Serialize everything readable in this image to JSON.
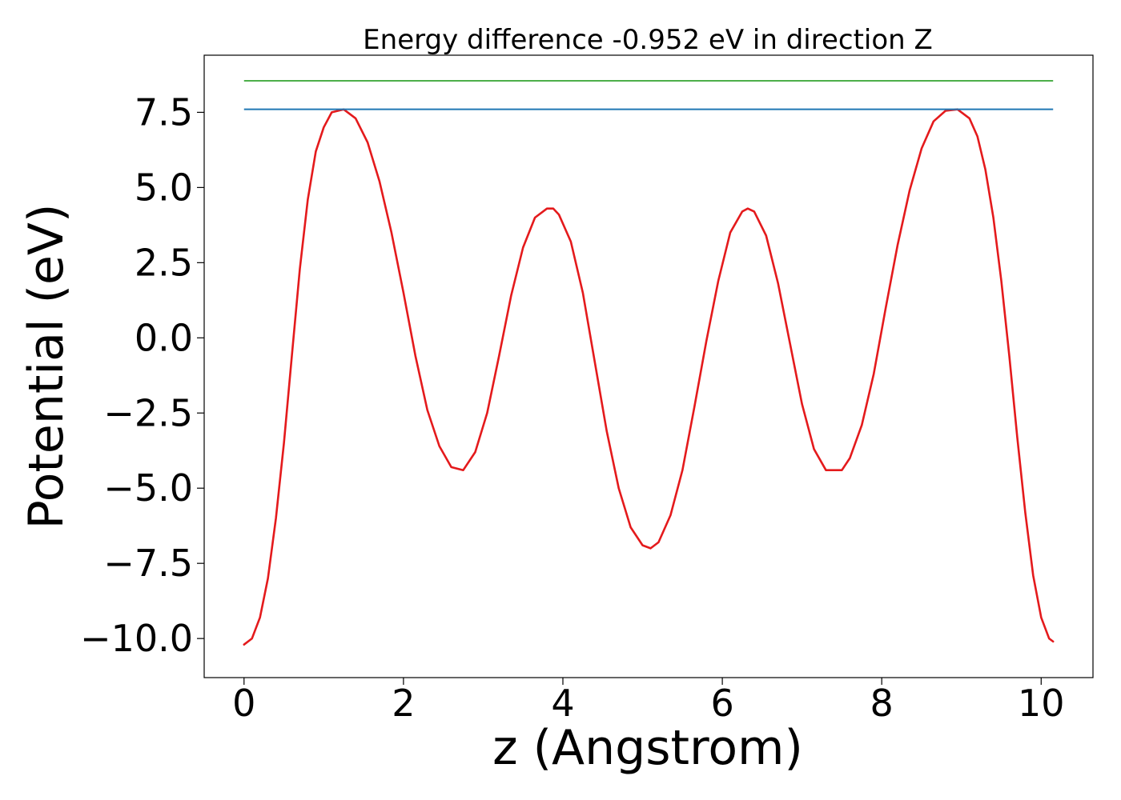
{
  "chart_data": {
    "type": "line",
    "title": "Energy difference -0.952 eV in direction Z",
    "xlabel": "z (Angstrom)",
    "ylabel": "Potential (eV)",
    "xlim": [
      -0.5,
      10.65
    ],
    "ylim": [
      -11.3,
      9.4
    ],
    "x_ticks": [
      0,
      2,
      4,
      6,
      8,
      10
    ],
    "x_tick_labels": [
      "0",
      "2",
      "4",
      "6",
      "8",
      "10"
    ],
    "y_ticks": [
      7.5,
      5.0,
      2.5,
      0.0,
      -2.5,
      -5.0,
      -7.5,
      -10.0
    ],
    "y_tick_labels": [
      "7.5",
      "5.0",
      "2.5",
      "0.0",
      "−2.5",
      "−5.0",
      "−7.5",
      "−10.0"
    ],
    "grid": false,
    "legend": "none",
    "series": [
      {
        "kind": "curve",
        "color": "#e41a1c",
        "x": [
          0.0,
          0.1,
          0.2,
          0.3,
          0.4,
          0.5,
          0.6,
          0.7,
          0.8,
          0.9,
          1.0,
          1.1,
          1.25,
          1.4,
          1.55,
          1.7,
          1.85,
          2.0,
          2.15,
          2.3,
          2.45,
          2.6,
          2.75,
          2.9,
          3.05,
          3.2,
          3.35,
          3.5,
          3.65,
          3.8,
          3.88,
          3.95,
          4.1,
          4.25,
          4.4,
          4.55,
          4.7,
          4.85,
          5.0,
          5.1,
          5.2,
          5.35,
          5.5,
          5.65,
          5.8,
          5.95,
          6.1,
          6.25,
          6.32,
          6.4,
          6.55,
          6.7,
          6.85,
          7.0,
          7.15,
          7.3,
          7.45,
          7.5,
          7.6,
          7.75,
          7.9,
          8.05,
          8.2,
          8.35,
          8.5,
          8.65,
          8.8,
          8.95,
          9.1,
          9.2,
          9.3,
          9.4,
          9.5,
          9.6,
          9.7,
          9.8,
          9.9,
          10.0,
          10.1,
          10.15
        ],
        "y": [
          -10.2,
          -10.0,
          -9.3,
          -8.0,
          -6.0,
          -3.5,
          -0.6,
          2.3,
          4.6,
          6.2,
          7.0,
          7.5,
          7.6,
          7.3,
          6.5,
          5.2,
          3.5,
          1.5,
          -0.6,
          -2.4,
          -3.6,
          -4.3,
          -4.4,
          -3.8,
          -2.5,
          -0.6,
          1.4,
          3.0,
          4.0,
          4.3,
          4.3,
          4.1,
          3.2,
          1.5,
          -0.8,
          -3.1,
          -5.0,
          -6.3,
          -6.9,
          -7.0,
          -6.8,
          -5.9,
          -4.4,
          -2.3,
          -0.1,
          1.9,
          3.5,
          4.2,
          4.3,
          4.2,
          3.4,
          1.8,
          -0.2,
          -2.2,
          -3.7,
          -4.4,
          -4.4,
          -4.4,
          -4.0,
          -2.9,
          -1.2,
          1.0,
          3.1,
          4.9,
          6.3,
          7.2,
          7.55,
          7.6,
          7.3,
          6.7,
          5.6,
          4.0,
          1.9,
          -0.6,
          -3.3,
          -5.8,
          -7.9,
          -9.3,
          -10.0,
          -10.1
        ]
      },
      {
        "kind": "hline",
        "color": "#1f77b4",
        "y": 7.6,
        "x_range": [
          0.0,
          10.15
        ]
      },
      {
        "kind": "hline",
        "color": "#4daf4a",
        "y": 8.55,
        "x_range": [
          0.0,
          10.15
        ]
      }
    ]
  }
}
